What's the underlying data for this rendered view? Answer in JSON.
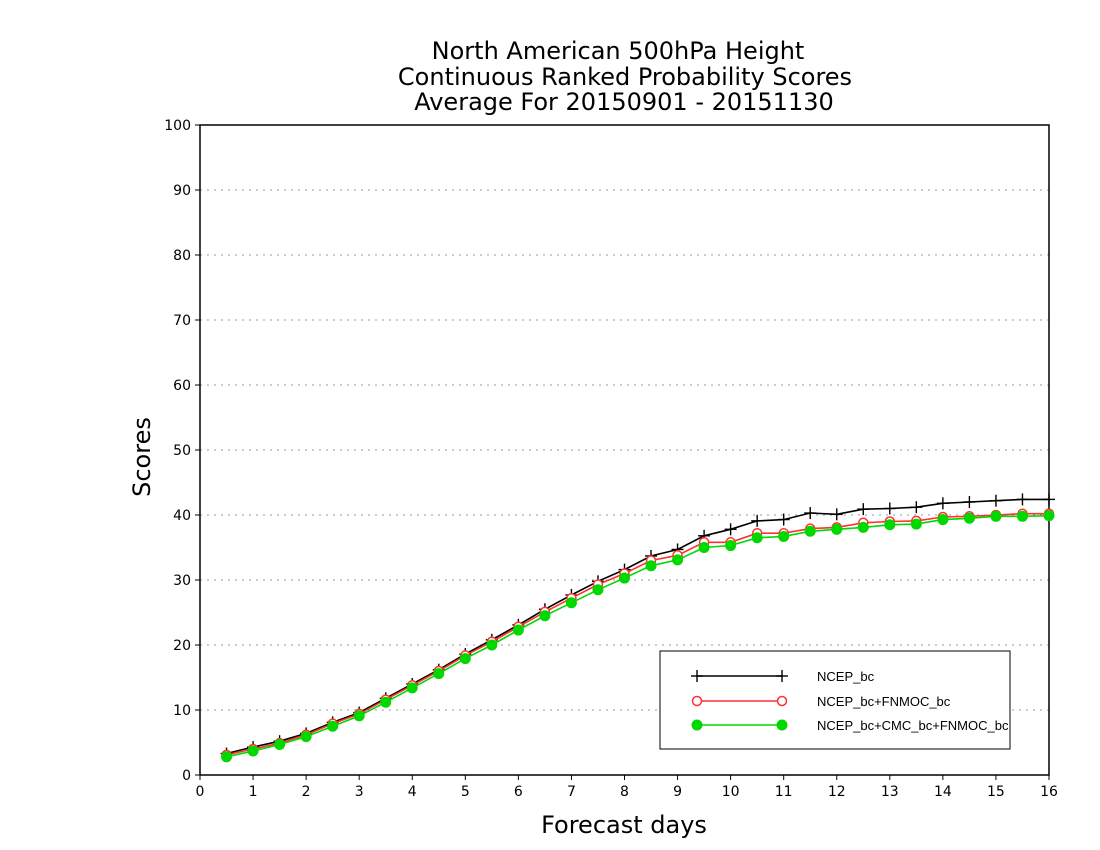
{
  "chart_data": {
    "type": "line",
    "title_lines": [
      "North American 500hPa Height",
      "Continuous Ranked Probability Scores",
      "Average For 20150901 - 20151130"
    ],
    "xlabel": "Forecast days",
    "ylabel": "Scores",
    "xlim": [
      0,
      16
    ],
    "ylim": [
      0,
      100
    ],
    "x_ticks": [
      "0",
      "1",
      "2",
      "3",
      "4",
      "5",
      "6",
      "7",
      "8",
      "9",
      "10",
      "11",
      "12",
      "13",
      "14",
      "15",
      "16"
    ],
    "y_ticks": [
      "0",
      "10",
      "20",
      "30",
      "40",
      "50",
      "60",
      "70",
      "80",
      "90",
      "100"
    ],
    "grid": "horizontal-dotted",
    "legend_position": "bottom-right",
    "x": [
      0.5,
      1,
      1.5,
      2,
      2.5,
      3,
      3.5,
      4,
      4.5,
      5,
      5.5,
      6,
      6.5,
      7,
      7.5,
      8,
      8.5,
      9,
      9.5,
      10,
      10.5,
      11,
      11.5,
      12,
      12.5,
      13,
      13.5,
      14,
      14.5,
      15,
      15.5,
      16
    ],
    "series": [
      {
        "name": "NCEP_bc",
        "color": "#000000",
        "marker": "plus",
        "values": [
          3.3,
          4.3,
          5.2,
          6.4,
          8.1,
          9.6,
          11.8,
          14.0,
          16.2,
          18.6,
          20.8,
          23.1,
          25.5,
          27.7,
          29.8,
          31.6,
          33.7,
          34.7,
          36.8,
          37.8,
          39.1,
          39.3,
          40.3,
          40.1,
          40.9,
          41.0,
          41.2,
          41.8,
          42.0,
          42.2,
          42.4,
          42.4
        ]
      },
      {
        "name": "NCEP_bc+FNMOC_bc",
        "color": "#ff3030",
        "marker": "open-circle",
        "values": [
          3.1,
          4.0,
          4.9,
          6.2,
          7.9,
          9.4,
          11.6,
          13.8,
          16.0,
          18.4,
          20.5,
          22.8,
          25.1,
          27.2,
          29.3,
          31.0,
          33.0,
          33.8,
          35.8,
          35.8,
          37.2,
          37.2,
          37.9,
          38.1,
          38.8,
          39.0,
          39.1,
          39.7,
          39.8,
          40.0,
          40.2,
          40.2
        ]
      },
      {
        "name": "NCEP_bc+CMC_bc+FNMOC_bc",
        "color": "#00d800",
        "marker": "filled-circle",
        "values": [
          2.8,
          3.7,
          4.7,
          5.9,
          7.5,
          9.1,
          11.2,
          13.4,
          15.6,
          17.9,
          20.0,
          22.3,
          24.5,
          26.5,
          28.5,
          30.3,
          32.2,
          33.1,
          35.0,
          35.3,
          36.5,
          36.7,
          37.5,
          37.8,
          38.1,
          38.5,
          38.6,
          39.3,
          39.5,
          39.8,
          39.8,
          39.9
        ]
      }
    ]
  }
}
